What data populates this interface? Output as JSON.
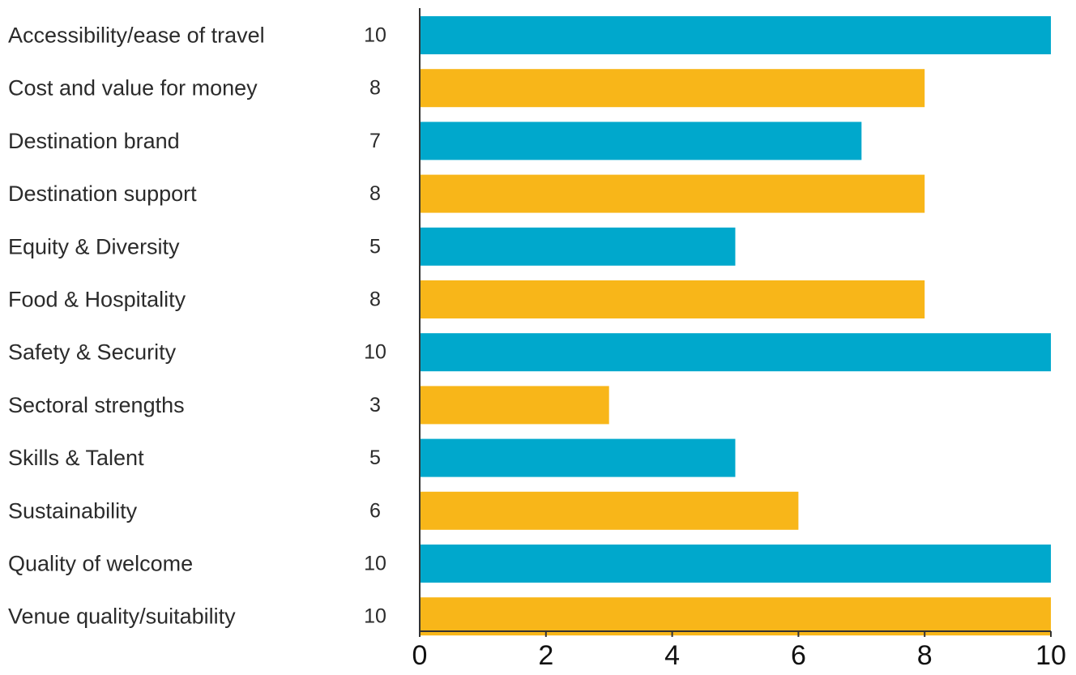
{
  "chart_data": {
    "type": "bar",
    "orientation": "horizontal",
    "categories": [
      "Accessibility/ease of travel",
      "Cost and value for money",
      "Destination brand",
      "Destination support",
      "Equity & Diversity",
      "Food & Hospitality",
      "Safety & Security",
      "Sectoral strengths",
      "Skills & Talent",
      "Sustainability",
      "Quality of welcome",
      "Venue quality/suitability"
    ],
    "values": [
      10,
      8,
      7,
      8,
      5,
      8,
      10,
      3,
      5,
      6,
      10,
      10
    ],
    "value_labels": [
      "10",
      "8",
      "7",
      "8",
      "5",
      "8",
      "10",
      "3",
      "5",
      "6",
      "10",
      "10"
    ],
    "xlim": [
      0,
      10
    ],
    "xticks": [
      0,
      2,
      4,
      6,
      8,
      10
    ],
    "xtick_labels": [
      "0",
      "2",
      "4",
      "6",
      "8",
      "10"
    ],
    "title": "",
    "xlabel": "",
    "ylabel": "",
    "grid": false,
    "legend": "none",
    "bar_colors": [
      "#00a8cc",
      "#f8b619"
    ]
  }
}
